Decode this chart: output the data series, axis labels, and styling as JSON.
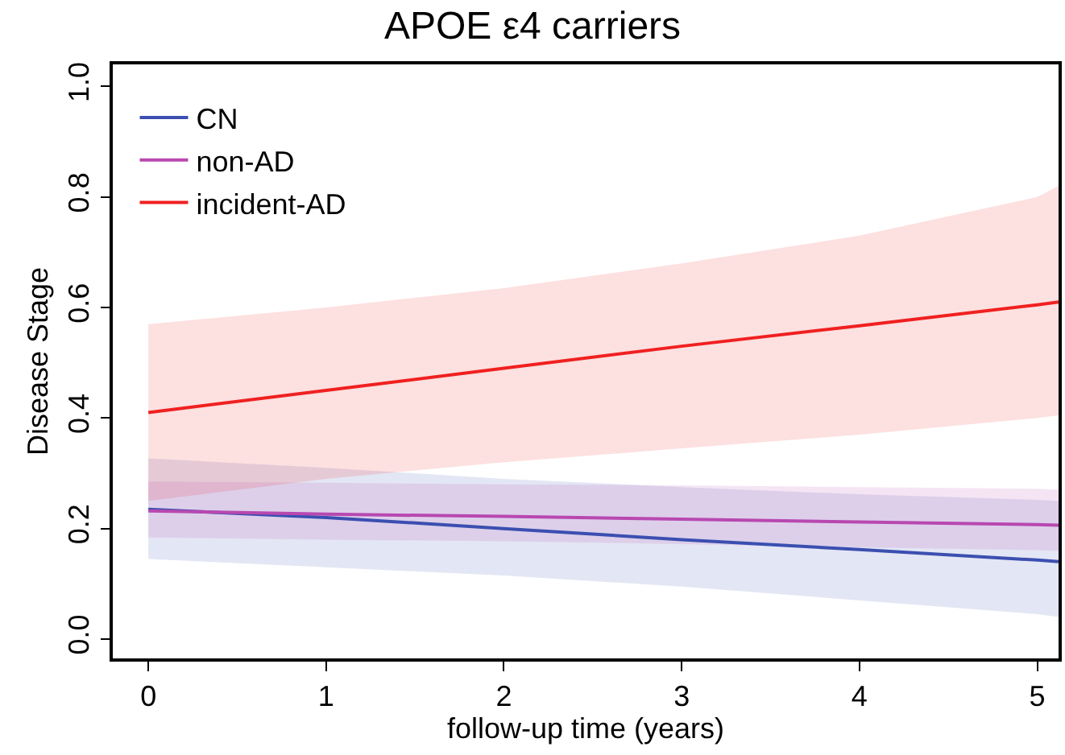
{
  "chart_data": {
    "type": "line",
    "title": "APOE ε4 carriers",
    "xlabel": "follow-up time (years)",
    "ylabel": "Disease Stage",
    "x": [
      0,
      1,
      2,
      3,
      4,
      5,
      5.12
    ],
    "series": [
      {
        "name": "CN",
        "color": "#3b4fb0",
        "values": [
          0.235,
          0.22,
          0.2,
          0.18,
          0.162,
          0.143,
          0.14
        ],
        "lower": [
          0.145,
          0.13,
          0.115,
          0.095,
          0.07,
          0.045,
          0.04
        ],
        "upper": [
          0.327,
          0.31,
          0.29,
          0.275,
          0.262,
          0.252,
          0.25
        ]
      },
      {
        "name": "non-AD",
        "color": "#b848b0",
        "values": [
          0.232,
          0.226,
          0.222,
          0.217,
          0.212,
          0.207,
          0.206
        ],
        "lower": [
          0.184,
          0.18,
          0.177,
          0.172,
          0.166,
          0.161,
          0.16
        ],
        "upper": [
          0.285,
          0.283,
          0.28,
          0.278,
          0.275,
          0.272,
          0.27
        ]
      },
      {
        "name": "incident-AD",
        "color": "#f02020",
        "values": [
          0.41,
          0.45,
          0.49,
          0.53,
          0.567,
          0.605,
          0.61
        ],
        "lower": [
          0.25,
          0.29,
          0.32,
          0.345,
          0.37,
          0.4,
          0.405
        ],
        "upper": [
          0.57,
          0.6,
          0.635,
          0.68,
          0.73,
          0.8,
          0.82
        ]
      }
    ],
    "xlim": [
      -0.2,
      5.12
    ],
    "ylim": [
      -0.035,
      1.04
    ],
    "xticks": [
      0,
      1,
      2,
      3,
      4,
      5
    ],
    "yticks": [
      {
        "value": 0,
        "label": "0.0"
      },
      {
        "value": 0.2,
        "label": "0.2"
      },
      {
        "value": 0.4,
        "label": "0.4"
      },
      {
        "value": 0.6,
        "label": "0.6"
      },
      {
        "value": 0.8,
        "label": "0.8"
      },
      {
        "value": 1,
        "label": "1.0"
      }
    ],
    "legend": "top left",
    "marker": "none",
    "line_style": "solid"
  }
}
